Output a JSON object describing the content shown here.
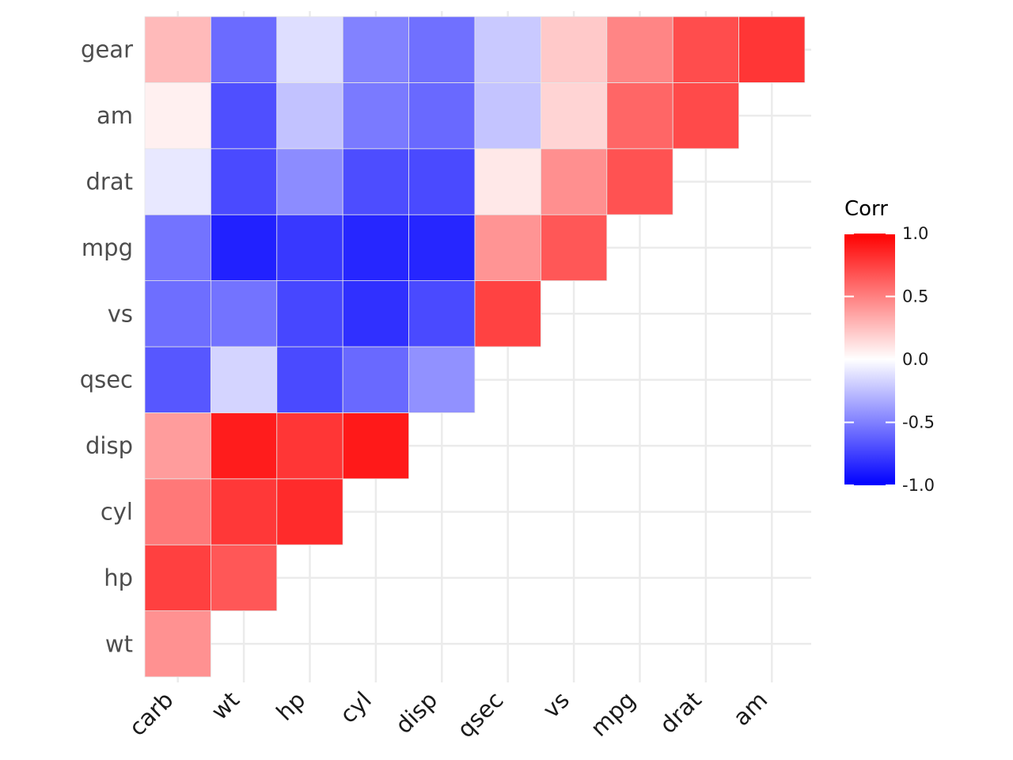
{
  "chart_data": {
    "type": "heatmap",
    "x_categories": [
      "carb",
      "wt",
      "hp",
      "cyl",
      "disp",
      "qsec",
      "vs",
      "mpg",
      "drat",
      "am"
    ],
    "y_categories": [
      "wt",
      "hp",
      "cyl",
      "disp",
      "qsec",
      "vs",
      "mpg",
      "drat",
      "am",
      "gear"
    ],
    "cells": [
      {
        "x": "carb",
        "y": "wt",
        "value": 0.43
      },
      {
        "x": "carb",
        "y": "hp",
        "value": 0.75
      },
      {
        "x": "wt",
        "y": "hp",
        "value": 0.66
      },
      {
        "x": "carb",
        "y": "cyl",
        "value": 0.53
      },
      {
        "x": "wt",
        "y": "cyl",
        "value": 0.78
      },
      {
        "x": "hp",
        "y": "cyl",
        "value": 0.83
      },
      {
        "x": "carb",
        "y": "disp",
        "value": 0.39
      },
      {
        "x": "wt",
        "y": "disp",
        "value": 0.89
      },
      {
        "x": "hp",
        "y": "disp",
        "value": 0.79
      },
      {
        "x": "cyl",
        "y": "disp",
        "value": 0.9
      },
      {
        "x": "carb",
        "y": "qsec",
        "value": -0.66
      },
      {
        "x": "wt",
        "y": "qsec",
        "value": -0.17
      },
      {
        "x": "hp",
        "y": "qsec",
        "value": -0.71
      },
      {
        "x": "cyl",
        "y": "qsec",
        "value": -0.59
      },
      {
        "x": "disp",
        "y": "qsec",
        "value": -0.43
      },
      {
        "x": "carb",
        "y": "vs",
        "value": -0.57
      },
      {
        "x": "wt",
        "y": "vs",
        "value": -0.55
      },
      {
        "x": "hp",
        "y": "vs",
        "value": -0.72
      },
      {
        "x": "cyl",
        "y": "vs",
        "value": -0.81
      },
      {
        "x": "disp",
        "y": "vs",
        "value": -0.71
      },
      {
        "x": "qsec",
        "y": "vs",
        "value": 0.74
      },
      {
        "x": "carb",
        "y": "mpg",
        "value": -0.55
      },
      {
        "x": "wt",
        "y": "mpg",
        "value": -0.87
      },
      {
        "x": "hp",
        "y": "mpg",
        "value": -0.78
      },
      {
        "x": "cyl",
        "y": "mpg",
        "value": -0.85
      },
      {
        "x": "disp",
        "y": "mpg",
        "value": -0.85
      },
      {
        "x": "qsec",
        "y": "mpg",
        "value": 0.42
      },
      {
        "x": "vs",
        "y": "mpg",
        "value": 0.66
      },
      {
        "x": "carb",
        "y": "drat",
        "value": -0.09
      },
      {
        "x": "wt",
        "y": "drat",
        "value": -0.71
      },
      {
        "x": "hp",
        "y": "drat",
        "value": -0.45
      },
      {
        "x": "cyl",
        "y": "drat",
        "value": -0.7
      },
      {
        "x": "disp",
        "y": "drat",
        "value": -0.71
      },
      {
        "x": "qsec",
        "y": "drat",
        "value": 0.09
      },
      {
        "x": "vs",
        "y": "drat",
        "value": 0.44
      },
      {
        "x": "mpg",
        "y": "drat",
        "value": 0.68
      },
      {
        "x": "carb",
        "y": "am",
        "value": 0.06
      },
      {
        "x": "wt",
        "y": "am",
        "value": -0.69
      },
      {
        "x": "hp",
        "y": "am",
        "value": -0.24
      },
      {
        "x": "cyl",
        "y": "am",
        "value": -0.52
      },
      {
        "x": "disp",
        "y": "am",
        "value": -0.59
      },
      {
        "x": "qsec",
        "y": "am",
        "value": -0.23
      },
      {
        "x": "vs",
        "y": "am",
        "value": 0.17
      },
      {
        "x": "mpg",
        "y": "am",
        "value": 0.6
      },
      {
        "x": "drat",
        "y": "am",
        "value": 0.71
      },
      {
        "x": "carb",
        "y": "gear",
        "value": 0.27
      },
      {
        "x": "wt",
        "y": "gear",
        "value": -0.58
      },
      {
        "x": "hp",
        "y": "gear",
        "value": -0.13
      },
      {
        "x": "cyl",
        "y": "gear",
        "value": -0.49
      },
      {
        "x": "disp",
        "y": "gear",
        "value": -0.56
      },
      {
        "x": "qsec",
        "y": "gear",
        "value": -0.21
      },
      {
        "x": "vs",
        "y": "gear",
        "value": 0.21
      },
      {
        "x": "mpg",
        "y": "gear",
        "value": 0.48
      },
      {
        "x": "drat",
        "y": "gear",
        "value": 0.7
      },
      {
        "x": "am",
        "y": "gear",
        "value": 0.79
      }
    ],
    "legend": {
      "title": "Corr",
      "placement": "right",
      "range": [
        -1,
        1
      ],
      "breaks": [
        1.0,
        0.5,
        0.0,
        -0.5,
        -1.0
      ],
      "break_labels": [
        "1.0",
        "0.5",
        "0.0",
        "-0.5",
        "-1.0"
      ]
    },
    "colors": {
      "low": "#0000ff",
      "mid": "#ffffff",
      "high": "#ff0000",
      "grid": "#ebebeb",
      "cell_border": "#e6e6e6"
    },
    "grid": true
  }
}
